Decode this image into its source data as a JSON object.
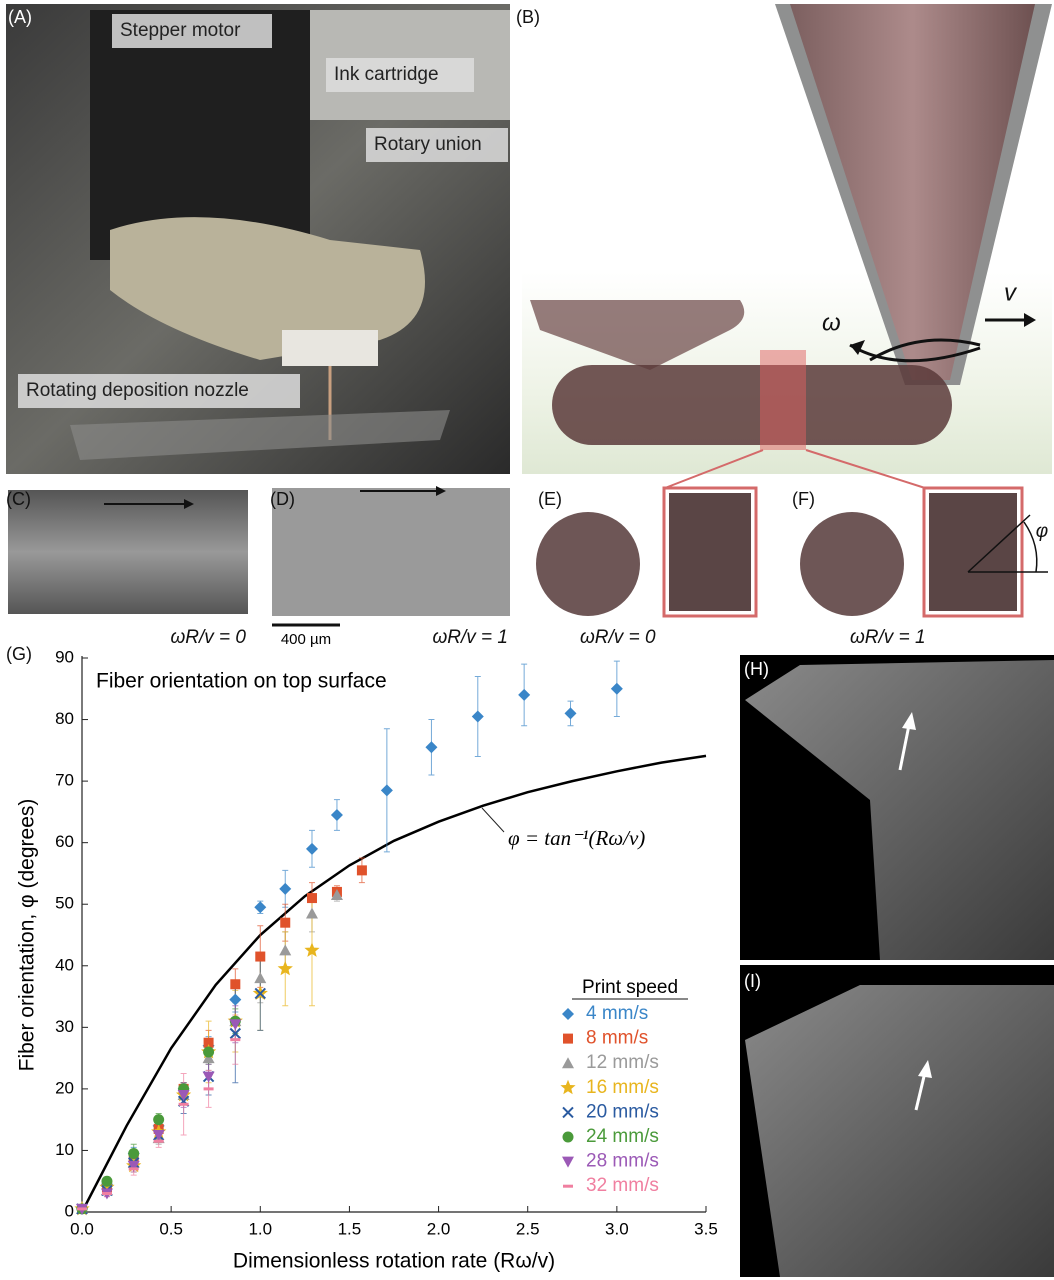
{
  "panels": {
    "A": {
      "label": "(A)",
      "annotations": [
        "Stepper motor",
        "Ink cartridge",
        "Rotary union",
        "Rotating deposition nozzle"
      ]
    },
    "B": {
      "label": "(B)",
      "annotations": [
        "ω",
        "v"
      ]
    },
    "C": {
      "label": "(C)",
      "caption": "ωR/v = 0"
    },
    "D": {
      "label": "(D)",
      "scale_bar": "400 µm",
      "caption": "ωR/v = 1"
    },
    "E": {
      "label": "(E)",
      "caption": "ωR/v = 0"
    },
    "F": {
      "label": "(F)",
      "caption": "ωR/v = 1",
      "angle": "φ"
    },
    "G": {
      "label": "(G)"
    },
    "H": {
      "label": "(H)"
    },
    "I": {
      "label": "(I)"
    }
  },
  "chart_data": {
    "type": "scatter",
    "title": "Fiber orientation on top surface",
    "xlabel": "Dimensionless rotation rate (Rω/v)",
    "ylabel": "Fiber orientation, φ (degrees)",
    "xlim": [
      0,
      3.5
    ],
    "xticks": [
      {
        "value": 0,
        "label": "0.0"
      },
      0.5,
      {
        "value": 1,
        "label": "1.0"
      },
      1.5,
      {
        "value": 2,
        "label": "2.0"
      },
      2.5,
      {
        "value": 3,
        "label": "3.0"
      },
      3.5
    ],
    "ylim": [
      0,
      90
    ],
    "yticks": [
      0,
      10,
      20,
      30,
      40,
      50,
      60,
      70,
      80,
      90
    ],
    "grid": false,
    "legend_title": "Print speed",
    "legend": "lower right",
    "annotation": "φ = tan⁻¹(Rω/v)",
    "curve": {
      "color": "#000000",
      "x": [
        0,
        0.25,
        0.5,
        0.75,
        1,
        1.25,
        1.5,
        1.75,
        2,
        2.25,
        2.5,
        2.75,
        3,
        3.25,
        3.5
      ],
      "values": [
        0,
        14.0,
        26.6,
        36.9,
        45,
        51.3,
        56.3,
        60.3,
        63.4,
        66.0,
        68.2,
        70.0,
        71.6,
        73.0,
        74.1
      ]
    },
    "series": [
      {
        "name": "4 mm/s",
        "color": "#3a86c8",
        "marker": "diamond",
        "x": [
          0,
          0.14,
          0.29,
          0.43,
          0.57,
          0.71,
          0.86,
          1.0,
          1.14,
          1.29,
          1.43,
          1.71,
          1.96,
          2.22,
          2.48,
          2.74,
          3.0
        ],
        "values": [
          0.5,
          4.5,
          9.5,
          14,
          20,
          27,
          34.5,
          49.5,
          52.5,
          59,
          64.5,
          68.5,
          75.5,
          80.5,
          84,
          81,
          85
        ],
        "errors": [
          0.5,
          0.5,
          1,
          1,
          1,
          1.5,
          2,
          1,
          3,
          3,
          2.5,
          10,
          4.5,
          6.5,
          5,
          2,
          4.5
        ]
      },
      {
        "name": "8 mm/s",
        "color": "#e0522b",
        "marker": "square",
        "x": [
          0,
          0.14,
          0.29,
          0.43,
          0.57,
          0.71,
          0.86,
          1.0,
          1.14,
          1.29,
          1.43,
          1.57
        ],
        "values": [
          0.5,
          4,
          9,
          13.5,
          20,
          27.5,
          37,
          41.5,
          47,
          51,
          52,
          55.5
        ],
        "errors": [
          0.5,
          0.5,
          1,
          1,
          1,
          2,
          2.5,
          5,
          3,
          2.5,
          1,
          2
        ]
      },
      {
        "name": "12 mm/s",
        "color": "#9a9a9a",
        "marker": "triangle",
        "x": [
          0,
          0.14,
          0.29,
          0.43,
          0.57,
          0.71,
          0.86,
          1.0,
          1.14,
          1.29,
          1.43
        ],
        "values": [
          0.5,
          3.5,
          8,
          12,
          19,
          25,
          31,
          38,
          42.5,
          48.5,
          51.5
        ],
        "errors": [
          0.5,
          0.5,
          1,
          1,
          1.5,
          2,
          3,
          4,
          3,
          3,
          1
        ]
      },
      {
        "name": "16 mm/s",
        "color": "#e8b51e",
        "marker": "star",
        "x": [
          0,
          0.14,
          0.29,
          0.43,
          0.57,
          0.71,
          0.86,
          1.0,
          1.14,
          1.29
        ],
        "values": [
          0.5,
          4,
          7.5,
          13,
          19,
          26,
          31,
          35.5,
          39.5,
          42.5
        ],
        "errors": [
          0.5,
          0.5,
          1,
          1,
          1.5,
          5,
          5,
          6,
          6,
          9
        ]
      },
      {
        "name": "20 mm/s",
        "color": "#2a5aa0",
        "marker": "cross",
        "x": [
          0,
          0.14,
          0.29,
          0.43,
          0.57,
          0.71,
          0.86,
          1.0
        ],
        "values": [
          0.5,
          3.5,
          8,
          12.5,
          18,
          22,
          29,
          35.5
        ],
        "errors": [
          0.5,
          0.5,
          1,
          1,
          2,
          3,
          8,
          6
        ]
      },
      {
        "name": "24 mm/s",
        "color": "#4a9a3a",
        "marker": "circle",
        "x": [
          0,
          0.14,
          0.29,
          0.43,
          0.57,
          0.71,
          0.86
        ],
        "values": [
          0.5,
          5,
          9.5,
          15,
          20,
          26,
          31
        ],
        "errors": [
          0.5,
          0.5,
          1.5,
          1,
          1,
          2,
          2
        ]
      },
      {
        "name": "28 mm/s",
        "color": "#9b59b6",
        "marker": "down-triangle",
        "x": [
          0,
          0.14,
          0.29,
          0.43,
          0.57,
          0.71,
          0.86
        ],
        "values": [
          0.5,
          3,
          7.5,
          12.5,
          19,
          22,
          30.5
        ],
        "errors": [
          0.5,
          0.5,
          1,
          1,
          2,
          2,
          3
        ]
      },
      {
        "name": "32 mm/s",
        "color": "#f07fa0",
        "marker": "dash",
        "x": [
          0,
          0.14,
          0.29,
          0.43,
          0.57,
          0.71,
          0.86
        ],
        "values": [
          0.5,
          3,
          7,
          11.5,
          17.5,
          20,
          28
        ],
        "errors": [
          0.5,
          0.5,
          1,
          1,
          5,
          3,
          4
        ]
      }
    ]
  }
}
